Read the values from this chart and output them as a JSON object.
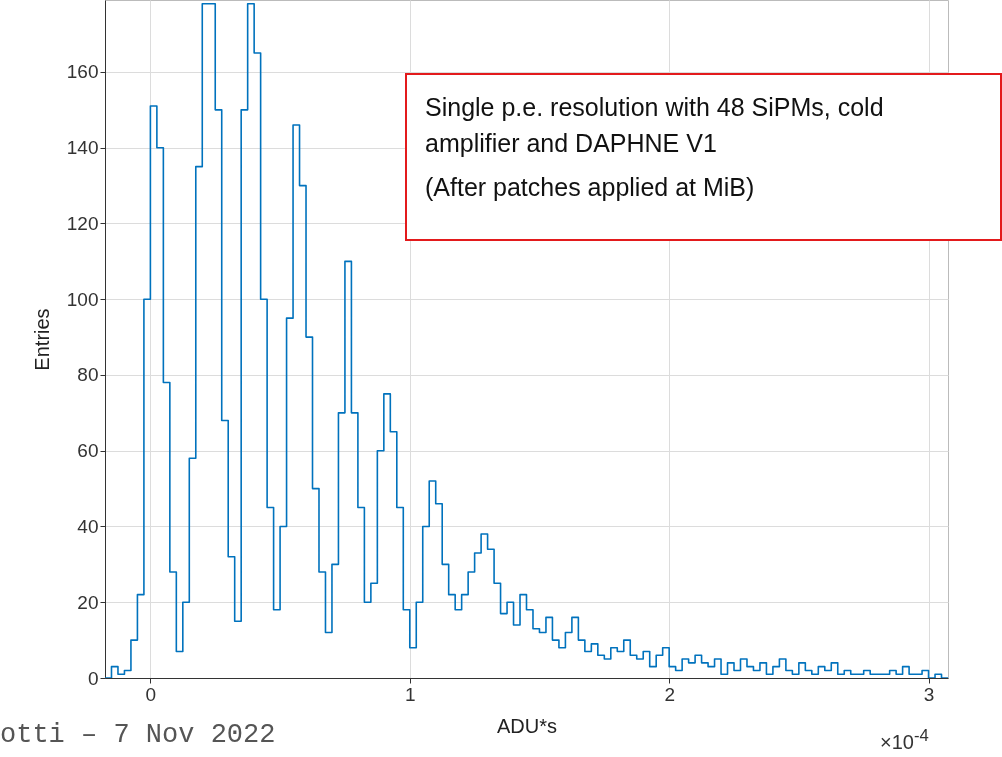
{
  "chart_data": {
    "type": "histogram",
    "xlabel": "ADU*s",
    "ylabel": "Entries",
    "bins": [
      -0.175,
      -0.15,
      -0.125,
      -0.1,
      -0.075,
      -0.05,
      -0.025,
      0,
      0.025,
      0.05,
      0.075,
      0.1,
      0.125,
      0.15,
      0.175,
      0.2,
      0.225,
      0.25,
      0.275,
      0.3,
      0.325,
      0.35,
      0.375,
      0.4,
      0.425,
      0.45,
      0.475,
      0.5,
      0.525,
      0.55,
      0.575,
      0.6,
      0.625,
      0.65,
      0.675,
      0.7,
      0.725,
      0.75,
      0.775,
      0.8,
      0.825,
      0.85,
      0.875,
      0.9,
      0.925,
      0.95,
      0.975,
      1,
      1.025,
      1.05,
      1.075,
      1.1,
      1.125,
      1.15,
      1.175,
      1.2,
      1.225,
      1.25,
      1.275,
      1.3,
      1.325,
      1.35,
      1.375,
      1.4,
      1.425,
      1.45,
      1.475,
      1.5,
      1.525,
      1.55,
      1.575,
      1.6,
      1.625,
      1.65,
      1.675,
      1.7,
      1.725,
      1.75,
      1.775,
      1.8,
      1.825,
      1.85,
      1.875,
      1.9,
      1.925,
      1.95,
      1.975,
      2,
      2.025,
      2.05,
      2.075,
      2.1,
      2.125,
      2.15,
      2.175,
      2.2,
      2.225,
      2.25,
      2.275,
      2.3,
      2.325,
      2.35,
      2.375,
      2.4,
      2.425,
      2.45,
      2.475,
      2.5,
      2.525,
      2.55,
      2.575,
      2.6,
      2.625,
      2.65,
      2.675,
      2.7,
      2.725,
      2.75,
      2.775,
      2.8,
      2.825,
      2.85,
      2.875,
      2.9,
      2.925,
      2.95,
      2.975,
      3,
      3.025,
      3.05,
      3.075
    ],
    "values": [
      0,
      3,
      1,
      2,
      10,
      22,
      100,
      151,
      140,
      78,
      28,
      7,
      20,
      58,
      135,
      178,
      178,
      150,
      68,
      32,
      15,
      150,
      178,
      165,
      100,
      45,
      18,
      40,
      95,
      146,
      130,
      90,
      50,
      28,
      12,
      30,
      70,
      110,
      70,
      45,
      20,
      25,
      60,
      75,
      65,
      45,
      18,
      8,
      20,
      40,
      52,
      46,
      30,
      22,
      18,
      22,
      28,
      33,
      38,
      34,
      25,
      17,
      20,
      14,
      22,
      18,
      13,
      12,
      16,
      10,
      8,
      12,
      16,
      10,
      7,
      9,
      6,
      5,
      8,
      7,
      10,
      6,
      5,
      7,
      3,
      6,
      8,
      3,
      2,
      5,
      4,
      6,
      4,
      3,
      5,
      1,
      4,
      2,
      5,
      3,
      2,
      4,
      1,
      3,
      5,
      2,
      1,
      4,
      2,
      1,
      3,
      2,
      4,
      1,
      2,
      1,
      1,
      2,
      1,
      1,
      1,
      2,
      1,
      3,
      1,
      1,
      2,
      0,
      1,
      0
    ],
    "color": "#0072bd",
    "xlim": [
      -0.175,
      3.075
    ],
    "xticks": [
      0,
      1,
      2,
      3
    ],
    "ylim": [
      0,
      179
    ],
    "yticks": [
      0,
      20,
      40,
      60,
      80,
      100,
      120,
      140,
      160
    ],
    "grid": true,
    "annotations": [
      "Single p.e. resolution with 48 SiPMs, cold amplifier and DAPHNE V1",
      "(After patches applied at MiB)",
      "otti – 7 Nov 2022",
      "×10$^{-4}$"
    ]
  }
}
